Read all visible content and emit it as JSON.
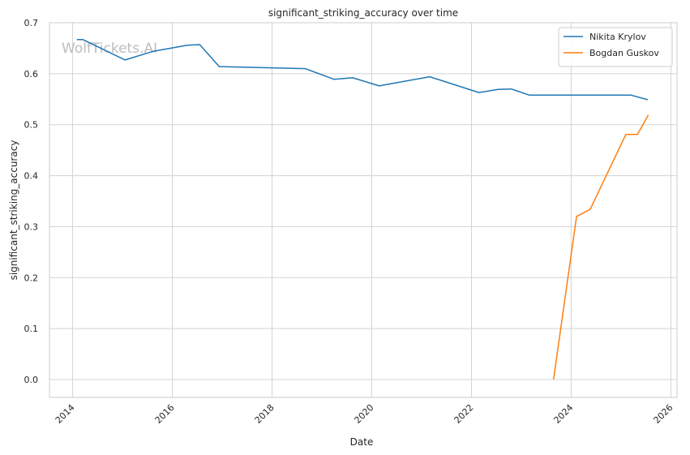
{
  "chart_data": {
    "type": "line",
    "title": "significant_striking_accuracy over time",
    "xlabel": "Date",
    "ylabel": "significant_striking_accuracy",
    "x_axis": "date",
    "xlim": [
      "2013-07-15",
      "2026-02-15"
    ],
    "ylim": [
      -0.035,
      0.7
    ],
    "x_ticks": [
      "2014",
      "2016",
      "2018",
      "2020",
      "2022",
      "2024",
      "2026"
    ],
    "y_ticks": [
      "0.0",
      "0.1",
      "0.2",
      "0.3",
      "0.4",
      "0.5",
      "0.6",
      "0.7"
    ],
    "grid": true,
    "legend_position": "top-right",
    "watermark": "WolfTickets.AI",
    "series": [
      {
        "name": "Nikita Krylov",
        "color": "#1f77b4",
        "points": [
          [
            "2014-02-01",
            0.667
          ],
          [
            "2014-03-15",
            0.667
          ],
          [
            "2015-01-20",
            0.627
          ],
          [
            "2015-08-15",
            0.644
          ],
          [
            "2016-04-20",
            0.656
          ],
          [
            "2016-07-20",
            0.657
          ],
          [
            "2016-12-10",
            0.614
          ],
          [
            "2018-09-01",
            0.61
          ],
          [
            "2019-04-01",
            0.589
          ],
          [
            "2019-08-15",
            0.592
          ],
          [
            "2020-02-25",
            0.576
          ],
          [
            "2021-03-01",
            0.594
          ],
          [
            "2022-02-25",
            0.563
          ],
          [
            "2022-07-15",
            0.569
          ],
          [
            "2022-10-20",
            0.57
          ],
          [
            "2023-03-01",
            0.558
          ],
          [
            "2025-03-15",
            0.558
          ],
          [
            "2025-07-15",
            0.549
          ]
        ]
      },
      {
        "name": "Bogdan Guskov",
        "color": "#ff7f0e",
        "points": [
          [
            "2023-08-25",
            0.0
          ],
          [
            "2024-02-10",
            0.32
          ],
          [
            "2024-05-20",
            0.334
          ],
          [
            "2025-02-05",
            0.481
          ],
          [
            "2025-05-01",
            0.481
          ],
          [
            "2025-07-20",
            0.519
          ]
        ]
      }
    ]
  }
}
